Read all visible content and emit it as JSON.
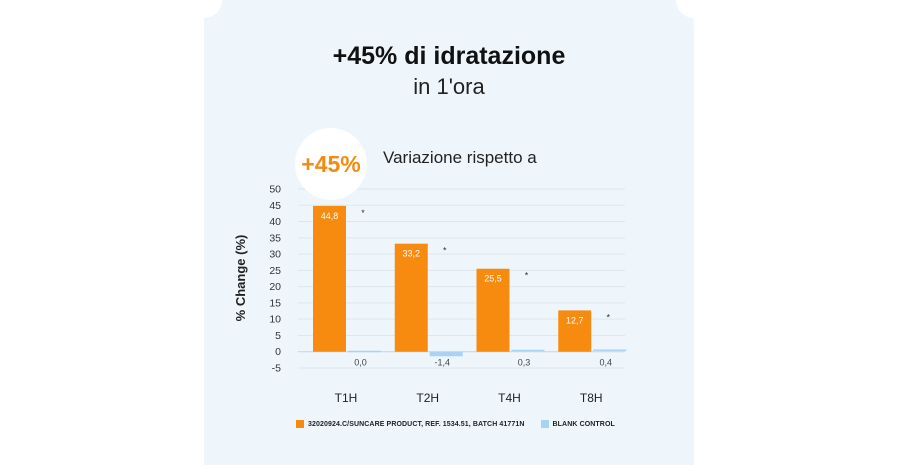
{
  "header": {
    "title": "+45% di idratazione",
    "subtitle": "in 1'ora"
  },
  "badge": {
    "label": "+45%"
  },
  "chart_heading": "Variazione rispetto a",
  "chart_data": {
    "type": "bar",
    "categories": [
      "T1H",
      "T2H",
      "T4H",
      "T8H"
    ],
    "series": [
      {
        "name": "32020924.C/SUNCARE PRODUCT, REF. 1534.51, BATCH 41771N",
        "values": [
          44.8,
          33.2,
          25.5,
          12.7
        ],
        "labels": [
          "44,8",
          "33,2",
          "25,5",
          "12,7"
        ],
        "significance": [
          "*",
          "*",
          "*",
          "*"
        ],
        "color": "#f68b0f"
      },
      {
        "name": "BLANK CONTROL",
        "values": [
          0.0,
          -1.4,
          0.3,
          0.4
        ],
        "labels": [
          "0,0",
          "-1,4",
          "0,3",
          "0,4"
        ],
        "color": "#a9d3f3"
      }
    ],
    "ylabel": "% Change (%)",
    "ylim": [
      -5,
      50
    ],
    "yticks": [
      -5,
      0,
      5,
      10,
      15,
      20,
      25,
      30,
      35,
      40,
      45,
      50
    ],
    "grid": true,
    "legend": "bottom"
  },
  "colors": {
    "accent": "#f38a12",
    "product": "#f68b0f",
    "control": "#a9d3f3",
    "background": "#eef6fc"
  }
}
